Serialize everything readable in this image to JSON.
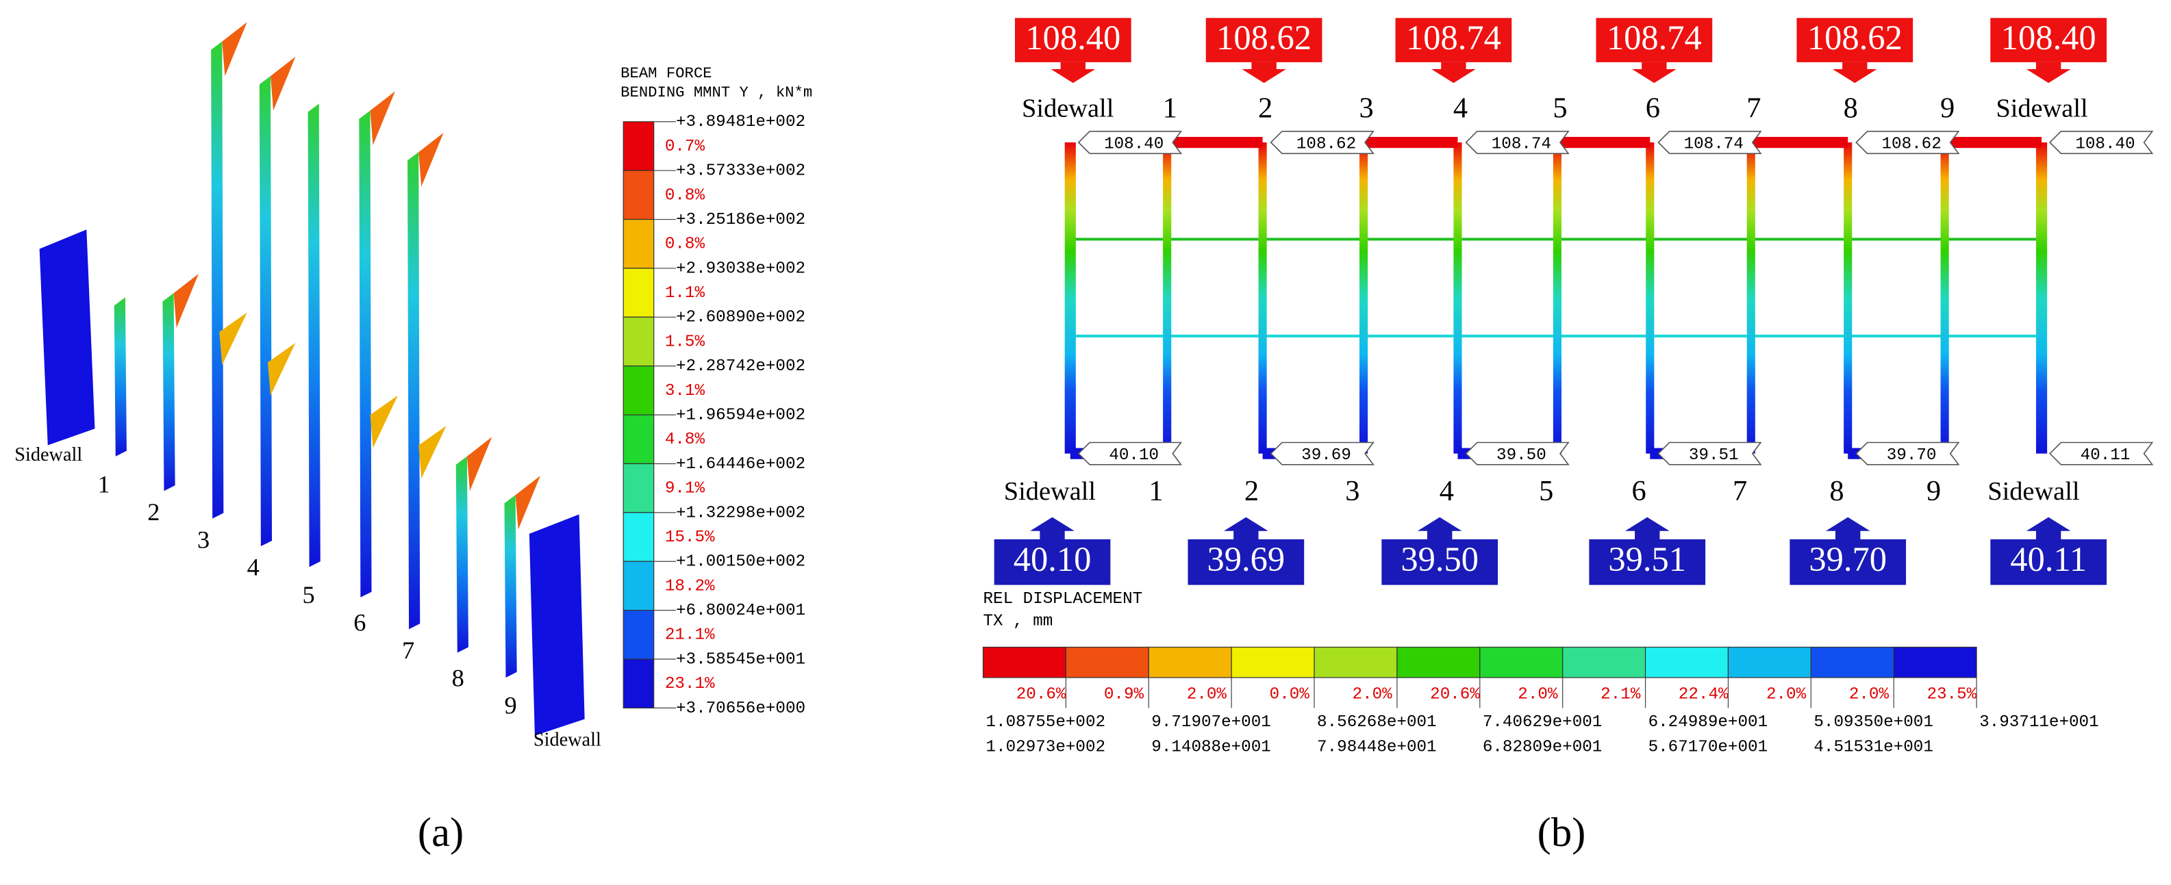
{
  "panel_a": {
    "legend_title": [
      "BEAM FORCE",
      "BENDING MMNT Y , kN*m"
    ],
    "legend_ticks": [
      "+3.89481e+002",
      "+3.57333e+002",
      "+3.25186e+002",
      "+2.93038e+002",
      "+2.60890e+002",
      "+2.28742e+002",
      "+1.96594e+002",
      "+1.64446e+002",
      "+1.32298e+002",
      "+1.00150e+002",
      "+6.80024e+001",
      "+3.58545e+001",
      "+3.70656e+000"
    ],
    "legend_percents": [
      "0.7%",
      "0.8%",
      "0.8%",
      "1.1%",
      "1.5%",
      "3.1%",
      "4.8%",
      "9.1%",
      "15.5%",
      "18.2%",
      "21.1%",
      "23.1%"
    ],
    "legend_colors": [
      "#e8000b",
      "#f05010",
      "#f4b400",
      "#f0f000",
      "#a8e020",
      "#30d000",
      "#20d830",
      "#30e090",
      "#20f0f0",
      "#10b8f0",
      "#1050f0",
      "#1010d8"
    ],
    "column_labels": [
      "Sidewall",
      "1",
      "2",
      "3",
      "4",
      "5",
      "6",
      "7",
      "8",
      "9",
      "Sidewall"
    ],
    "caption": "(a)"
  },
  "panel_b": {
    "top_boxes": [
      "108.40",
      "108.62",
      "108.74",
      "108.74",
      "108.62",
      "108.40"
    ],
    "top_column_labels": [
      "Sidewall",
      "1",
      "2",
      "3",
      "4",
      "5",
      "6",
      "7",
      "8",
      "9",
      "Sidewall"
    ],
    "top_node_labels": [
      "108.40",
      "108.62",
      "108.74",
      "108.74",
      "108.62",
      "108.40"
    ],
    "bottom_node_labels": [
      "40.10",
      "39.69",
      "39.50",
      "39.51",
      "39.70",
      "40.11"
    ],
    "bottom_column_labels": [
      "Sidewall",
      "1",
      "2",
      "3",
      "4",
      "5",
      "6",
      "7",
      "8",
      "9",
      "Sidewall"
    ],
    "bottom_boxes": [
      "40.10",
      "39.69",
      "39.50",
      "39.51",
      "39.70",
      "40.11"
    ],
    "legend_title": [
      "REL DISPLACEMENT",
      "TX , mm"
    ],
    "legend_colors": [
      "#e8000b",
      "#f05010",
      "#f4b400",
      "#f0f000",
      "#a8e020",
      "#30d000",
      "#20d830",
      "#30e090",
      "#20f0f0",
      "#10b8f0",
      "#1050f0",
      "#1010d8"
    ],
    "legend_percents": [
      "20.6%",
      "0.9%",
      "2.0%",
      "0.0%",
      "2.0%",
      "20.6%",
      "2.0%",
      "2.1%",
      "22.4%",
      "2.0%",
      "2.0%",
      "23.5%"
    ],
    "legend_ticks_upper": [
      "1.08755e+002",
      "9.71907e+001",
      "8.56268e+001",
      "7.40629e+001",
      "6.24989e+001",
      "5.09350e+001",
      "3.93711e+001"
    ],
    "legend_ticks_lower": [
      "1.02973e+002",
      "9.14088e+001",
      "7.98448e+001",
      "6.82809e+001",
      "5.67170e+001",
      "4.51531e+001"
    ],
    "caption": "(b)"
  }
}
